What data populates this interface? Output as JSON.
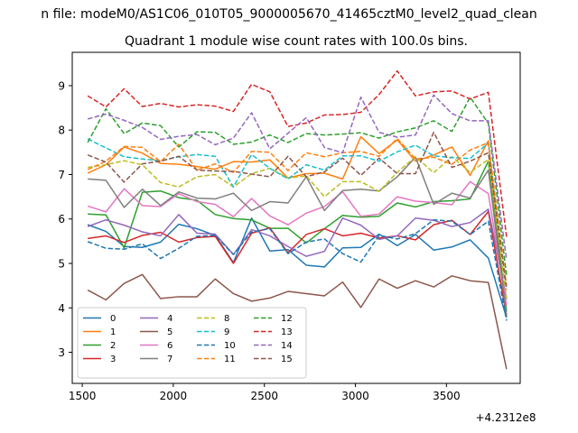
{
  "figure": {
    "suptitle": "n file: modeM0/AS1C06_010T05_9000005670_41465cztM0_level2_quad_clean",
    "offset_text": "+4.2312e8"
  },
  "chart_data": {
    "type": "line",
    "title": "Quadrant 1 module wise count rates with 100.0s bins.",
    "xlabel": "",
    "ylabel": "",
    "xlim": [
      1445,
      3905
    ],
    "ylim": [
      2.3,
      9.75
    ],
    "x_ticks": [
      1500,
      2000,
      2500,
      3000,
      3500
    ],
    "x_tick_labels": [
      "1500",
      "2000",
      "2500",
      "3000",
      "3500"
    ],
    "y_ticks": [
      3,
      4,
      5,
      6,
      7,
      8,
      9
    ],
    "y_tick_labels": [
      "3",
      "4",
      "5",
      "6",
      "7",
      "8",
      "9"
    ],
    "grid": false,
    "legend_position": "lower-left",
    "legend_columns": 4,
    "x": [
      1530,
      1630,
      1730,
      1830,
      1930,
      2030,
      2130,
      2230,
      2330,
      2430,
      2530,
      2630,
      2730,
      2830,
      2930,
      3030,
      3130,
      3230,
      3330,
      3430,
      3530,
      3630,
      3730,
      3830
    ],
    "series": [
      {
        "name": "0",
        "color": "#1f77b4",
        "dash": "solid",
        "values": [
          5.87,
          5.72,
          5.38,
          5.36,
          5.48,
          5.88,
          5.78,
          5.63,
          5.02,
          6.02,
          5.28,
          5.31,
          4.96,
          4.92,
          5.35,
          5.36,
          5.66,
          5.4,
          5.65,
          5.3,
          5.37,
          5.53,
          5.12,
          3.78
        ]
      },
      {
        "name": "1",
        "color": "#ff7f0e",
        "dash": "solid",
        "values": [
          7.03,
          7.22,
          7.62,
          7.48,
          7.25,
          7.23,
          7.18,
          7.12,
          7.29,
          7.28,
          7.33,
          6.92,
          7.02,
          7.03,
          6.9,
          7.85,
          7.47,
          7.78,
          7.3,
          7.44,
          7.62,
          6.98,
          7.76,
          3.8
        ]
      },
      {
        "name": "2",
        "color": "#2ca02c",
        "dash": "solid",
        "values": [
          6.11,
          6.09,
          5.35,
          6.6,
          6.63,
          6.48,
          6.42,
          6.1,
          6.01,
          5.98,
          5.79,
          5.79,
          5.46,
          5.78,
          6.08,
          6.04,
          6.06,
          6.36,
          6.27,
          6.39,
          6.41,
          6.45,
          7.3,
          3.92
        ]
      },
      {
        "name": "3",
        "color": "#d62728",
        "dash": "solid",
        "values": [
          5.56,
          5.62,
          5.47,
          5.63,
          5.7,
          5.48,
          5.58,
          5.61,
          5.0,
          5.68,
          5.8,
          5.24,
          5.65,
          5.78,
          5.62,
          5.68,
          5.57,
          5.62,
          5.53,
          5.87,
          5.97,
          5.65,
          6.17,
          3.82
        ]
      },
      {
        "name": "4",
        "color": "#9467bd",
        "dash": "solid",
        "values": [
          5.83,
          5.98,
          5.86,
          5.71,
          5.62,
          6.1,
          5.68,
          5.66,
          5.2,
          5.76,
          5.62,
          5.38,
          5.16,
          5.27,
          6.02,
          5.86,
          5.54,
          5.62,
          6.02,
          5.97,
          5.83,
          5.92,
          6.22,
          4.2
        ]
      },
      {
        "name": "5",
        "color": "#8c564b",
        "dash": "solid",
        "values": [
          4.4,
          4.18,
          4.55,
          4.75,
          4.21,
          4.25,
          4.25,
          4.65,
          4.32,
          4.15,
          4.22,
          4.37,
          4.32,
          4.27,
          4.58,
          4.01,
          4.65,
          4.44,
          4.61,
          4.47,
          4.72,
          4.61,
          4.57,
          2.62
        ]
      },
      {
        "name": "6",
        "color": "#e377c2",
        "dash": "solid",
        "values": [
          6.29,
          6.16,
          6.68,
          6.3,
          6.28,
          6.57,
          6.39,
          6.33,
          6.05,
          6.46,
          6.07,
          5.87,
          6.13,
          6.28,
          6.61,
          6.06,
          6.11,
          6.5,
          6.4,
          6.37,
          6.32,
          6.84,
          6.57,
          4.05
        ]
      },
      {
        "name": "7",
        "color": "#7f7f7f",
        "dash": "solid",
        "values": [
          6.9,
          6.87,
          6.26,
          6.67,
          6.3,
          6.61,
          6.47,
          6.45,
          6.58,
          6.19,
          6.39,
          6.36,
          6.95,
          6.19,
          6.64,
          6.67,
          6.63,
          6.95,
          7.39,
          6.33,
          6.58,
          6.47,
          7.1,
          3.82
        ]
      },
      {
        "name": "8",
        "color": "#bcbd22",
        "dash": "dashed",
        "values": [
          7.16,
          7.22,
          7.31,
          7.22,
          6.82,
          6.72,
          6.95,
          7.0,
          6.72,
          7.02,
          7.14,
          6.92,
          6.97,
          6.5,
          6.84,
          6.84,
          6.62,
          7.05,
          7.4,
          7.04,
          7.4,
          7.05,
          7.34,
          4.22
        ]
      },
      {
        "name": "9",
        "color": "#17becf",
        "dash": "dashed",
        "values": [
          7.8,
          7.6,
          7.4,
          7.35,
          7.31,
          7.4,
          7.45,
          7.41,
          6.72,
          7.45,
          7.14,
          6.9,
          7.22,
          7.1,
          7.42,
          7.42,
          7.3,
          7.51,
          7.66,
          7.42,
          7.38,
          7.36,
          7.71,
          4.44
        ]
      },
      {
        "name": "10",
        "color": "#1f77b4",
        "dash": "dashed",
        "values": [
          5.49,
          5.34,
          5.32,
          5.44,
          5.11,
          5.34,
          5.61,
          5.63,
          5.2,
          5.71,
          5.78,
          5.22,
          5.48,
          5.55,
          5.22,
          5.03,
          5.63,
          5.55,
          5.67,
          5.98,
          5.95,
          5.65,
          5.95,
          3.71
        ]
      },
      {
        "name": "11",
        "color": "#ff7f0e",
        "dash": "dashed",
        "values": [
          7.11,
          7.3,
          7.63,
          7.61,
          7.29,
          7.68,
          7.1,
          7.24,
          7.05,
          7.52,
          7.5,
          7.09,
          7.49,
          7.4,
          7.49,
          7.52,
          7.41,
          7.81,
          7.35,
          7.39,
          7.23,
          7.55,
          7.72,
          4.49
        ]
      },
      {
        "name": "12",
        "color": "#2ca02c",
        "dash": "dashed",
        "values": [
          7.72,
          8.48,
          7.92,
          8.16,
          8.1,
          7.62,
          7.96,
          7.95,
          7.68,
          7.73,
          7.89,
          7.72,
          7.92,
          7.89,
          7.91,
          7.94,
          7.82,
          7.96,
          8.05,
          8.21,
          7.97,
          8.74,
          8.15,
          4.73
        ]
      },
      {
        "name": "13",
        "color": "#d62728",
        "dash": "dashed",
        "values": [
          8.77,
          8.52,
          8.93,
          8.53,
          8.6,
          8.52,
          8.57,
          8.54,
          8.42,
          9.03,
          8.86,
          8.08,
          8.16,
          8.34,
          8.35,
          8.4,
          8.8,
          9.33,
          8.77,
          8.86,
          8.88,
          8.7,
          8.85,
          5.6
        ]
      },
      {
        "name": "14",
        "color": "#9467bd",
        "dash": "dashed",
        "values": [
          8.25,
          8.36,
          8.22,
          8.06,
          7.79,
          7.86,
          7.9,
          7.67,
          7.82,
          8.39,
          7.58,
          7.93,
          8.28,
          7.61,
          7.49,
          8.74,
          7.95,
          7.84,
          7.89,
          8.79,
          8.37,
          8.21,
          8.21,
          5.08
        ]
      },
      {
        "name": "15",
        "color": "#8c564b",
        "dash": "dashed",
        "values": [
          7.44,
          7.28,
          6.83,
          7.24,
          7.3,
          7.41,
          7.1,
          7.08,
          7.07,
          7.01,
          6.95,
          7.41,
          6.95,
          7.06,
          7.37,
          6.98,
          7.37,
          7.02,
          7.02,
          7.95,
          7.16,
          7.3,
          7.49,
          4.41
        ]
      }
    ]
  }
}
